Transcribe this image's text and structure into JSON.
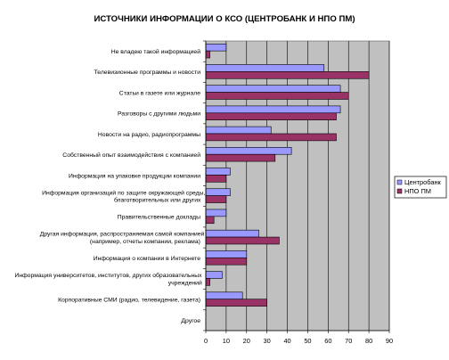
{
  "chart_data": {
    "type": "bar",
    "orientation": "horizontal",
    "title": "ИСТОЧНИКИ ИНФОРМАЦИИ О КСО (ЦЕНТРОБАНК И НПО ПМ)",
    "categories": [
      "Не владею такой информацией",
      "Телевизионные программы и новости",
      "Статьи в газете или журнале",
      "Разговоры с другими людьми",
      "Новости на радио, радиопрограммы",
      "Собственный опыт взаимодействия с компанией",
      "Информация на упаковке продукции компании",
      [
        "Информация организаций по защите окружающей среды,",
        "благотворительных или других"
      ],
      "Правительственные доклады",
      [
        "Другая информация, распространяемая самой компанией",
        "(например, отчеты компании, реклама)"
      ],
      "Информация о компании в Интернете",
      [
        "Информация университетов, институтов, других образовательных",
        "учреждений"
      ],
      "Корпоративные СМИ (радио, телевидение, газета)",
      "Другое"
    ],
    "series": [
      {
        "name": "Центробанк",
        "color": "#9999ff",
        "values": [
          10,
          58,
          66,
          66,
          32,
          42,
          12,
          12,
          10,
          26,
          20,
          8,
          18,
          0
        ]
      },
      {
        "name": "НПО ПМ",
        "color": "#993366",
        "values": [
          2,
          80,
          70,
          64,
          64,
          34,
          10,
          10,
          4,
          36,
          20,
          2,
          30,
          0
        ]
      }
    ],
    "xlim": [
      0,
      90
    ],
    "xticks": [
      0,
      10,
      20,
      30,
      40,
      50,
      60,
      70,
      80,
      90
    ],
    "grid": true,
    "plot_background": "#c0c0c0",
    "legend_position": "right"
  }
}
